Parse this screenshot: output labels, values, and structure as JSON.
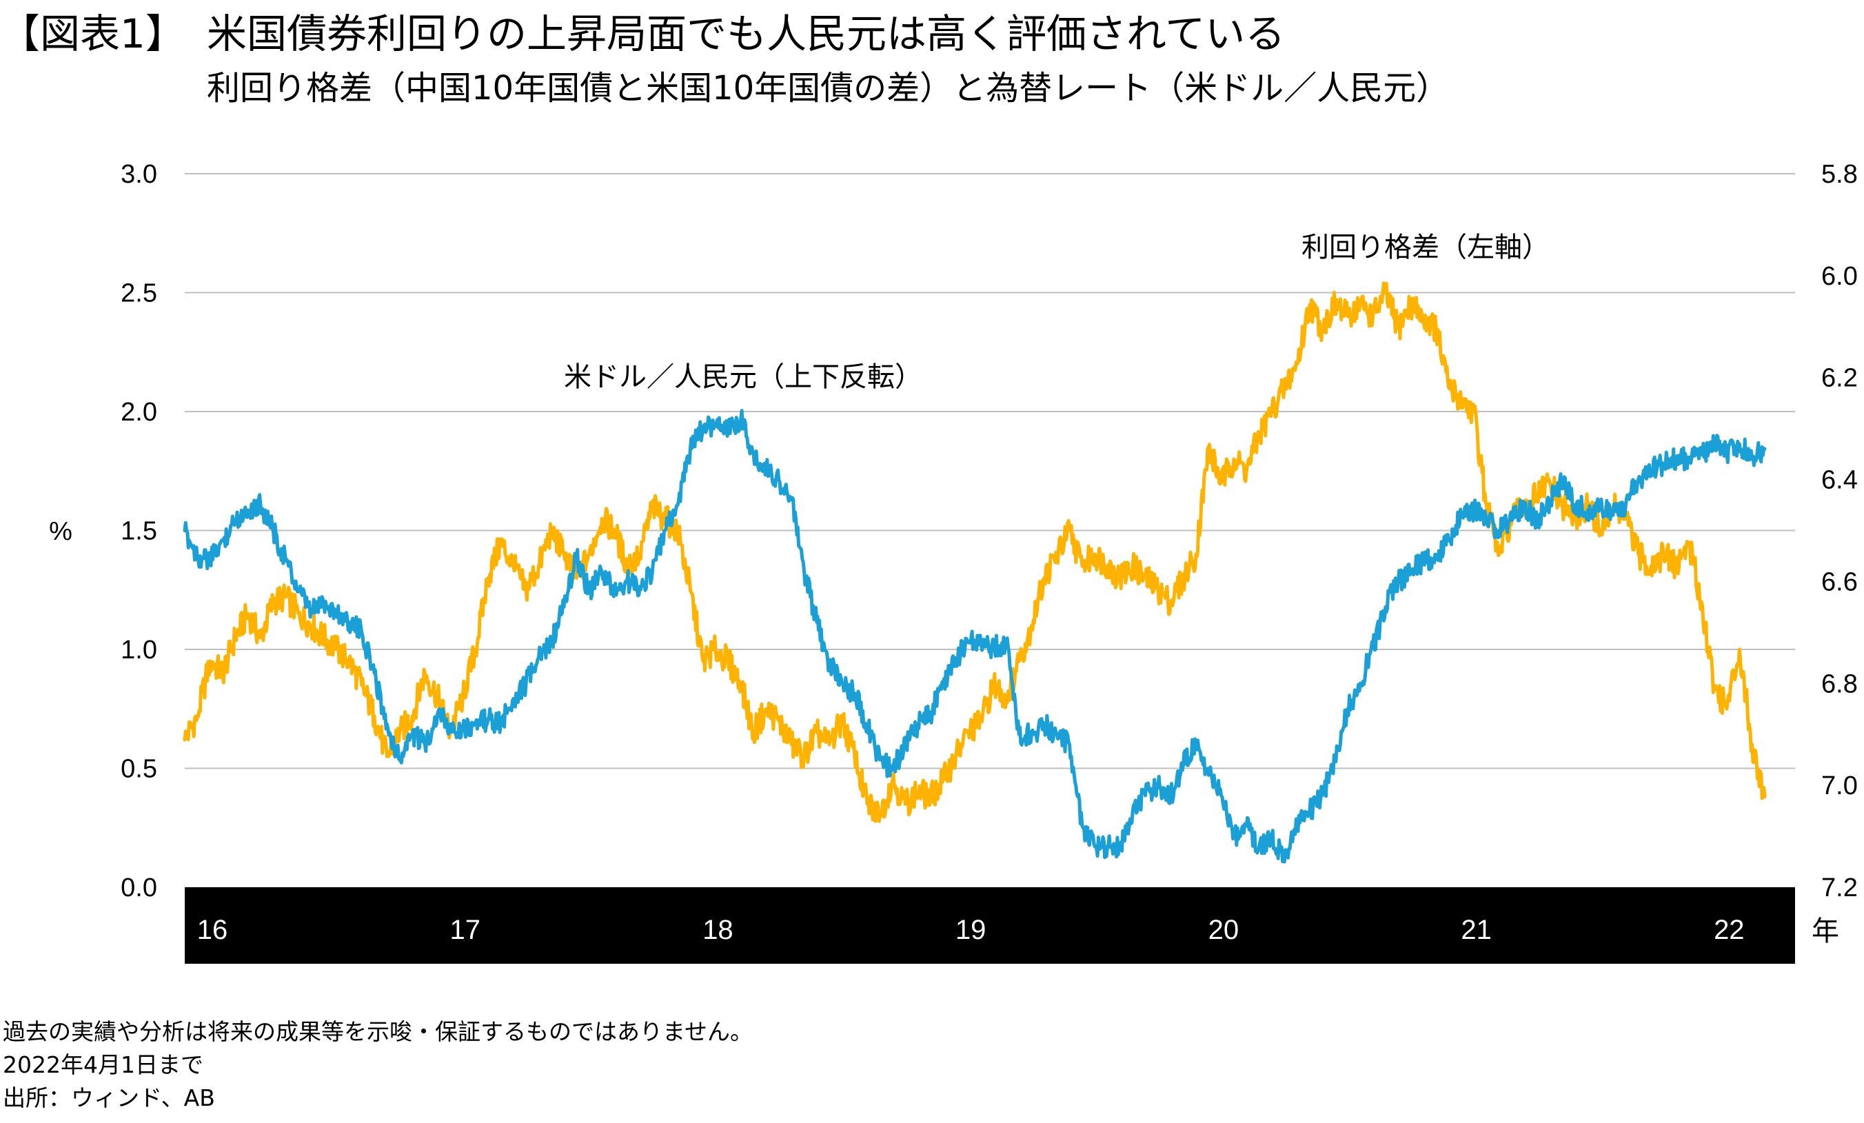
{
  "title": {
    "tag": "【図表1】",
    "text": "米国債券利回りの上昇局面でも人民元は高く評価されている"
  },
  "subtitle": "利回り格差（中国10年国債と米国10年国債の差）と為替レート（米ドル／人民元）",
  "colors": {
    "yield_spread": "#FFB300",
    "usdcny": "#1A9FD6",
    "xaxis_band": "#000000",
    "grid": "#BFBFBF"
  },
  "chart_data": {
    "type": "line",
    "title": "利回り格差（中国10年国債と米国10年国債の差）と為替レート（米ドル／人民元）",
    "ylabel_left": "%",
    "xlabel_unit": "年",
    "left_axis": {
      "ylim": [
        0,
        3.0
      ],
      "ticks": [
        "3.0",
        "2.5",
        "2.0",
        "1.5",
        "1.0",
        "0.5",
        "0.0"
      ]
    },
    "right_axis": {
      "ylim": [
        5.8,
        7.2
      ],
      "inverted": true,
      "ticks": [
        "5.8",
        "6.0",
        "6.2",
        "6.4",
        "6.6",
        "6.8",
        "7.0",
        "7.2"
      ]
    },
    "xlim": [
      2016.0,
      2022.37
    ],
    "x_tick_labels": [
      "16",
      "17",
      "18",
      "19",
      "20",
      "21",
      "22"
    ],
    "x_tick_values": [
      2016,
      2017,
      2018,
      2019,
      2020,
      2021,
      2022
    ],
    "series": [
      {
        "name": "利回り格差（左軸）",
        "axis": "left",
        "x": [
          2016.0,
          2016.05,
          2016.1,
          2016.15,
          2016.2,
          2016.25,
          2016.3,
          2016.35,
          2016.4,
          2016.45,
          2016.5,
          2016.55,
          2016.6,
          2016.65,
          2016.7,
          2016.75,
          2016.8,
          2016.85,
          2016.9,
          2016.95,
          2017.0,
          2017.05,
          2017.1,
          2017.15,
          2017.2,
          2017.25,
          2017.3,
          2017.35,
          2017.4,
          2017.45,
          2017.5,
          2017.55,
          2017.6,
          2017.65,
          2017.7,
          2017.75,
          2017.8,
          2017.85,
          2017.9,
          2017.95,
          2018.0,
          2018.05,
          2018.1,
          2018.15,
          2018.2,
          2018.25,
          2018.3,
          2018.35,
          2018.4,
          2018.45,
          2018.5,
          2018.55,
          2018.6,
          2018.65,
          2018.7,
          2018.75,
          2018.8,
          2018.85,
          2018.9,
          2018.95,
          2019.0,
          2019.05,
          2019.1,
          2019.15,
          2019.2,
          2019.25,
          2019.3,
          2019.35,
          2019.4,
          2019.45,
          2019.5,
          2019.55,
          2019.6,
          2019.65,
          2019.7,
          2019.75,
          2019.8,
          2019.85,
          2019.9,
          2019.95,
          2020.0,
          2020.05,
          2020.1,
          2020.15,
          2020.2,
          2020.25,
          2020.3,
          2020.35,
          2020.4,
          2020.45,
          2020.5,
          2020.55,
          2020.6,
          2020.65,
          2020.7,
          2020.75,
          2020.8,
          2020.85,
          2020.9,
          2020.95,
          2021.0,
          2021.05,
          2021.1,
          2021.15,
          2021.2,
          2021.25,
          2021.3,
          2021.35,
          2021.4,
          2021.45,
          2021.5,
          2021.55,
          2021.6,
          2021.65,
          2021.7,
          2021.75,
          2021.8,
          2021.85,
          2021.9,
          2021.95,
          2022.0,
          2022.05,
          2022.1,
          2022.15,
          2022.2,
          2022.25
        ],
        "y": [
          0.62,
          0.72,
          0.95,
          0.9,
          1.05,
          1.15,
          1.05,
          1.2,
          1.22,
          1.15,
          1.1,
          1.05,
          1.0,
          0.95,
          0.85,
          0.72,
          0.55,
          0.65,
          0.72,
          0.9,
          0.8,
          0.65,
          0.8,
          1.0,
          1.3,
          1.45,
          1.35,
          1.25,
          1.35,
          1.5,
          1.4,
          1.3,
          1.4,
          1.55,
          1.5,
          1.35,
          1.4,
          1.6,
          1.55,
          1.5,
          1.25,
          0.95,
          1.0,
          0.95,
          0.85,
          0.65,
          0.75,
          0.7,
          0.6,
          0.55,
          0.65,
          0.6,
          0.7,
          0.55,
          0.35,
          0.3,
          0.45,
          0.35,
          0.4,
          0.38,
          0.45,
          0.55,
          0.65,
          0.7,
          0.85,
          0.8,
          0.95,
          1.1,
          1.3,
          1.4,
          1.5,
          1.35,
          1.4,
          1.35,
          1.3,
          1.35,
          1.3,
          1.25,
          1.2,
          1.3,
          1.4,
          1.85,
          1.7,
          1.8,
          1.75,
          1.9,
          2.0,
          2.1,
          2.2,
          2.45,
          2.35,
          2.45,
          2.4,
          2.45,
          2.4,
          2.5,
          2.35,
          2.45,
          2.4,
          2.35,
          2.1,
          2.05,
          2.0,
          1.6,
          1.4,
          1.55,
          1.6,
          1.65,
          1.7,
          1.6,
          1.55,
          1.6,
          1.5,
          1.6,
          1.55,
          1.4,
          1.35,
          1.4,
          1.35,
          1.45,
          1.2,
          0.85,
          0.75,
          1.0,
          0.6,
          0.38
        ]
      },
      {
        "name": "米ドル／人民元（上下反転）",
        "axis": "right",
        "x": [
          2016.0,
          2016.05,
          2016.1,
          2016.15,
          2016.2,
          2016.25,
          2016.3,
          2016.35,
          2016.4,
          2016.45,
          2016.5,
          2016.55,
          2016.6,
          2016.65,
          2016.7,
          2016.75,
          2016.8,
          2016.85,
          2016.9,
          2016.95,
          2017.0,
          2017.05,
          2017.1,
          2017.15,
          2017.2,
          2017.25,
          2017.3,
          2017.35,
          2017.4,
          2017.45,
          2017.5,
          2017.55,
          2017.6,
          2017.65,
          2017.7,
          2017.75,
          2017.8,
          2017.85,
          2017.9,
          2017.95,
          2018.0,
          2018.05,
          2018.1,
          2018.15,
          2018.2,
          2018.25,
          2018.3,
          2018.35,
          2018.4,
          2018.45,
          2018.5,
          2018.55,
          2018.6,
          2018.65,
          2018.7,
          2018.75,
          2018.8,
          2018.85,
          2018.9,
          2018.95,
          2019.0,
          2019.05,
          2019.1,
          2019.15,
          2019.2,
          2019.25,
          2019.3,
          2019.35,
          2019.4,
          2019.45,
          2019.5,
          2019.55,
          2019.6,
          2019.65,
          2019.7,
          2019.75,
          2019.8,
          2019.85,
          2019.9,
          2019.95,
          2020.0,
          2020.05,
          2020.1,
          2020.15,
          2020.2,
          2020.25,
          2020.3,
          2020.35,
          2020.4,
          2020.45,
          2020.5,
          2020.55,
          2020.6,
          2020.65,
          2020.7,
          2020.75,
          2020.8,
          2020.85,
          2020.9,
          2020.95,
          2021.0,
          2021.05,
          2021.1,
          2021.15,
          2021.2,
          2021.25,
          2021.3,
          2021.35,
          2021.4,
          2021.45,
          2021.5,
          2021.55,
          2021.6,
          2021.65,
          2021.7,
          2021.75,
          2021.8,
          2021.85,
          2021.9,
          2021.95,
          2022.0,
          2022.05,
          2022.1,
          2022.15,
          2022.2,
          2022.25
        ],
        "y": [
          6.5,
          6.55,
          6.56,
          6.52,
          6.48,
          6.46,
          6.45,
          6.5,
          6.56,
          6.62,
          6.66,
          6.64,
          6.66,
          6.68,
          6.7,
          6.78,
          6.88,
          6.95,
          6.9,
          6.92,
          6.86,
          6.88,
          6.89,
          6.88,
          6.87,
          6.88,
          6.83,
          6.8,
          6.75,
          6.72,
          6.65,
          6.55,
          6.62,
          6.58,
          6.62,
          6.6,
          6.61,
          6.58,
          6.5,
          6.45,
          6.34,
          6.3,
          6.29,
          6.3,
          6.28,
          6.35,
          6.38,
          6.4,
          6.44,
          6.58,
          6.68,
          6.76,
          6.8,
          6.82,
          6.88,
          6.95,
          6.97,
          6.92,
          6.88,
          6.86,
          6.8,
          6.75,
          6.72,
          6.72,
          6.73,
          6.72,
          6.9,
          6.9,
          6.88,
          6.9,
          6.92,
          7.08,
          7.12,
          7.12,
          7.12,
          7.05,
          7.02,
          7.0,
          7.02,
          6.96,
          6.92,
          6.98,
          7.02,
          7.1,
          7.08,
          7.12,
          7.1,
          7.15,
          7.08,
          7.05,
          7.02,
          6.95,
          6.85,
          6.8,
          6.73,
          6.65,
          6.6,
          6.58,
          6.56,
          6.55,
          6.52,
          6.47,
          6.46,
          6.48,
          6.5,
          6.48,
          6.45,
          6.48,
          6.44,
          6.4,
          6.45,
          6.46,
          6.45,
          6.47,
          6.45,
          6.4,
          6.38,
          6.37,
          6.36,
          6.36,
          6.35,
          6.33,
          6.35,
          6.33,
          6.36,
          6.34
        ]
      }
    ],
    "annotations": [
      {
        "text": "利回り格差（左軸）",
        "series": "利回り格差（左軸）"
      },
      {
        "text": "米ドル／人民元（上下反転）",
        "series": "米ドル／人民元（上下反転）"
      }
    ]
  },
  "notes": [
    "過去の実績や分析は将来の成果等を示唆・保証するものではありません。",
    "2022年4月1日まで",
    "出所：ウィンド、AB"
  ]
}
